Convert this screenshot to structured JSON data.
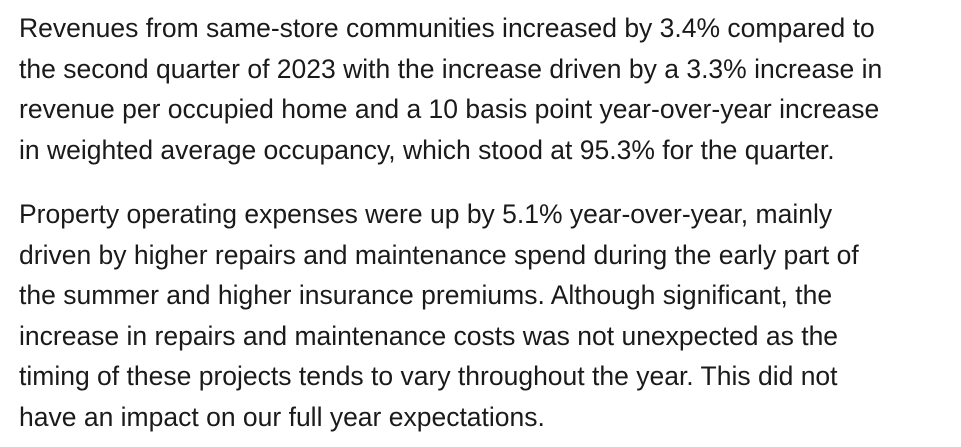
{
  "paragraphs": [
    {
      "lines": [
        "Revenues from same-store communities increased by 3.4% compared to",
        "the second quarter of 2023 with the increase driven by a 3.3% increase in",
        "revenue per occupied home and a 10 basis point year-over-year increase",
        "in weighted average occupancy, which stood at 95.3% for the quarter."
      ]
    },
    {
      "lines": [
        "Property operating expenses were up by 5.1% year-over-year, mainly",
        "driven by higher repairs and maintenance spend during the early part of",
        "the summer and higher insurance premiums. Although significant, the",
        "increase in repairs and maintenance costs was not unexpected as the",
        "timing of these projects tends to vary throughout the year. This did not",
        "have an impact on our full year expectations."
      ]
    }
  ]
}
